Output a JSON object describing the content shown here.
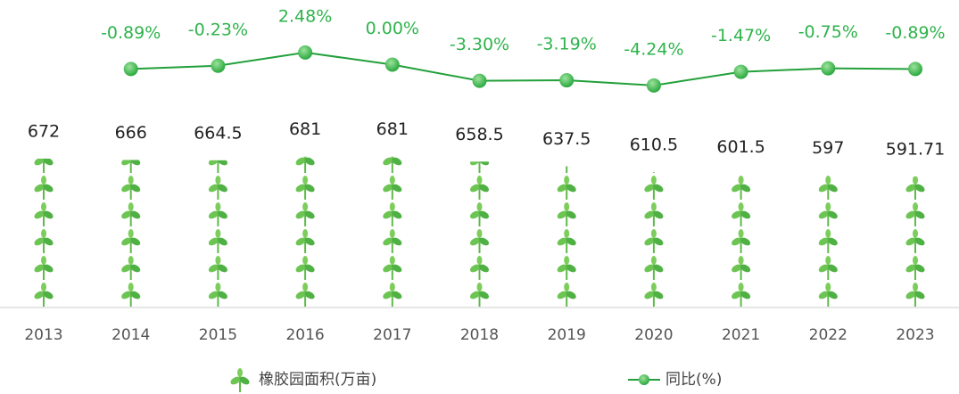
{
  "chart_data": {
    "type": "combo",
    "categories": [
      "2013",
      "2014",
      "2015",
      "2016",
      "2017",
      "2018",
      "2019",
      "2020",
      "2021",
      "2022",
      "2023"
    ],
    "series": [
      {
        "name": "橡胶园面积(万亩)",
        "color": "#4cb848",
        "values": [
          672,
          666,
          664.5,
          681,
          681,
          658.5,
          637.5,
          610.5,
          601.5,
          597,
          591.71
        ]
      },
      {
        "name": "同比(%)",
        "color": "#22a03a",
        "axis": "y2",
        "values": [
          null,
          -0.89,
          -0.23,
          2.48,
          0,
          -3.3,
          -3.19,
          -4.24,
          -1.47,
          -0.75,
          -0.89
        ],
        "value_labels": [
          null,
          "-0.89%",
          "-0.23%",
          "2.48%",
          "0.00%",
          "-3.30%",
          "-3.19%",
          "-4.24%",
          "-1.47%",
          "-0.75%",
          "-0.89%"
        ]
      }
    ],
    "ylim": [
      0,
      700
    ],
    "y2lim": [
      -5,
      5
    ]
  }
}
